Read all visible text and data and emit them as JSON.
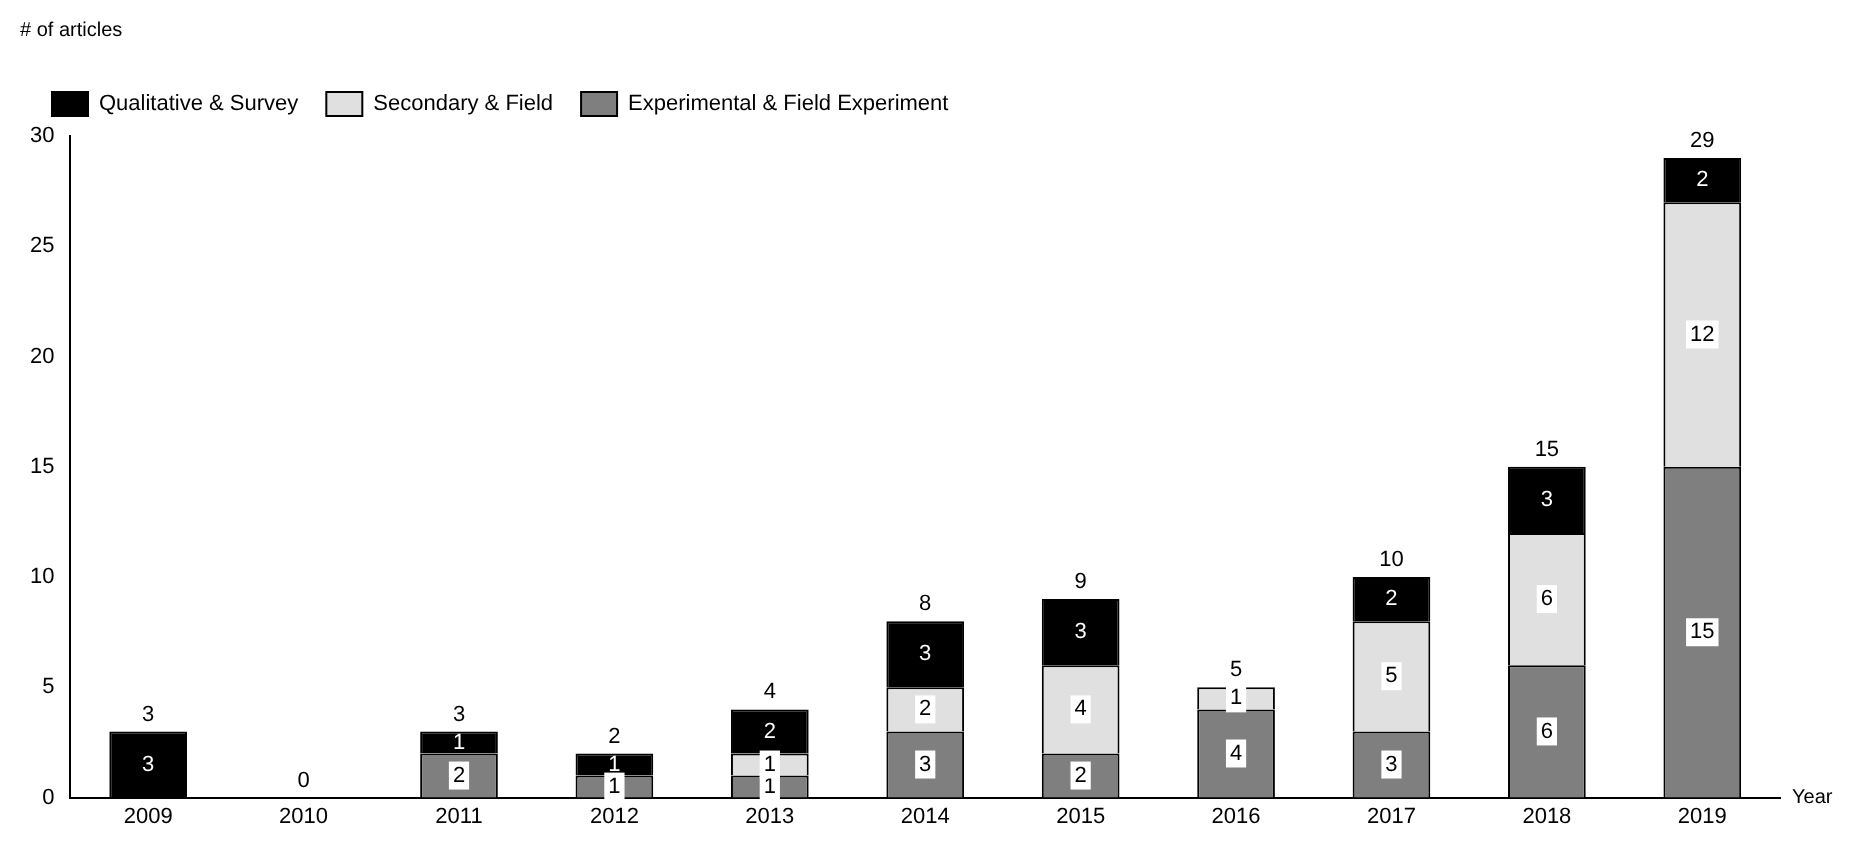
{
  "chart_data": {
    "type": "bar",
    "stacked": true,
    "xlabel": "Year",
    "ylabel": "# of articles",
    "categories": [
      "2009",
      "2010",
      "2011",
      "2012",
      "2013",
      "2014",
      "2015",
      "2016",
      "2017",
      "2018",
      "2019"
    ],
    "series": [
      {
        "name": "Experimental & Field Experiment",
        "color": "#7f7f7f",
        "values": [
          0,
          0,
          2,
          1,
          1,
          3,
          2,
          4,
          3,
          6,
          15
        ],
        "value_labels": [
          null,
          null,
          "2",
          "1",
          "1",
          "3",
          "2",
          "4",
          "3",
          "6",
          "15"
        ]
      },
      {
        "name": "Secondary & Field",
        "color": "#e0e0e0",
        "values": [
          0,
          0,
          0,
          0,
          1,
          2,
          4,
          1,
          5,
          6,
          12
        ],
        "value_labels": [
          null,
          null,
          null,
          null,
          "1",
          "2",
          "4",
          "1",
          "5",
          "6",
          "12"
        ]
      },
      {
        "name": "Qualitative & Survey",
        "color": "#000000",
        "values": [
          3,
          0,
          1,
          1,
          2,
          3,
          3,
          0,
          2,
          3,
          2
        ],
        "value_labels": [
          "3",
          null,
          "1",
          "1",
          "2",
          "3",
          "3",
          null,
          "2",
          "3",
          "2"
        ]
      }
    ],
    "totals": [
      "3",
      "0",
      "3",
      "2",
      "4",
      "8",
      "9",
      "5",
      "10",
      "15",
      "29"
    ],
    "ylim": [
      0,
      30
    ],
    "yticks": [
      0,
      5,
      10,
      15,
      20,
      25,
      30
    ],
    "grid": false,
    "legend": "top left"
  }
}
